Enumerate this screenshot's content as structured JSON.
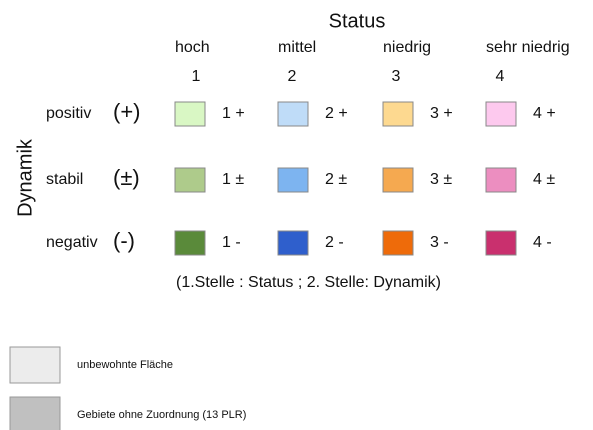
{
  "status_title": "Status",
  "dynamik_title": "Dynamik",
  "columns": [
    {
      "name": "hoch",
      "number": "1"
    },
    {
      "name": "mittel",
      "number": "2"
    },
    {
      "name": "niedrig",
      "number": "3"
    },
    {
      "name": "sehr niedrig",
      "number": "4"
    }
  ],
  "rows": [
    {
      "name": "positiv",
      "symbol": "(+)",
      "cells": [
        {
          "label": "1 +",
          "color": "#d9f7c4"
        },
        {
          "label": "2 +",
          "color": "#bfdcf8"
        },
        {
          "label": "3 +",
          "color": "#fdd990"
        },
        {
          "label": "4 +",
          "color": "#fdc9ee"
        }
      ]
    },
    {
      "name": "stabil",
      "symbol": "(±)",
      "cells": [
        {
          "label": "1 ±",
          "color": "#aecb8b"
        },
        {
          "label": "2 ±",
          "color": "#7db4f0"
        },
        {
          "label": "3 ±",
          "color": "#f5a950"
        },
        {
          "label": "4 ±",
          "color": "#ec8ec0"
        }
      ]
    },
    {
      "name": "negativ",
      "symbol": "(-)",
      "cells": [
        {
          "label": "1 -",
          "color": "#5a8a3a"
        },
        {
          "label": "2 -",
          "color": "#2f5fcc"
        },
        {
          "label": "3 -",
          "color": "#ee6b0a"
        },
        {
          "label": "4 -",
          "color": "#c9306e"
        }
      ]
    }
  ],
  "note": "(1.Stelle : Status ; 2. Stelle: Dynamik)",
  "extra": [
    {
      "label": "unbewohnte Fläche",
      "color": "#ececec"
    },
    {
      "label": "Gebiete ohne Zuordnung (13 PLR)",
      "color": "#c0c0c0"
    }
  ]
}
